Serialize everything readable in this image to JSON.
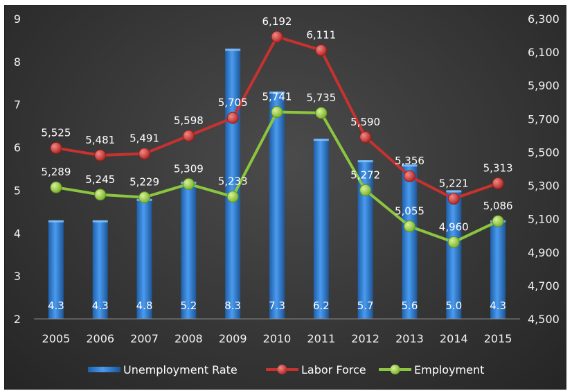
{
  "header_fragment": "",
  "chart_data": {
    "type": "bar+line",
    "categories": [
      "2005",
      "2006",
      "2007",
      "2008",
      "2009",
      "2010",
      "2011",
      "2012",
      "2013",
      "2014",
      "2015"
    ],
    "series": [
      {
        "name": "Unemployment Rate",
        "chart": "bar",
        "axis": "left",
        "color": "#2d7fd4",
        "values": [
          4.3,
          4.3,
          4.8,
          5.2,
          8.3,
          7.3,
          6.2,
          5.7,
          5.6,
          5.0,
          4.3
        ],
        "labels": [
          "4.3",
          "4.3",
          "4.8",
          "5.2",
          "8.3",
          "7.3",
          "6.2",
          "5.7",
          "5.6",
          "5.0",
          "4.3"
        ]
      },
      {
        "name": "Labor Force",
        "chart": "line",
        "axis": "right",
        "color": "#c7322f",
        "values": [
          5525,
          5481,
          5491,
          5598,
          5705,
          6192,
          6111,
          5590,
          5356,
          5221,
          5313
        ],
        "labels": [
          "5,525",
          "5,481",
          "5,491",
          "5,598",
          "5,705",
          "6,192",
          "6,111",
          "5,590",
          "5,356",
          "5,221",
          "5,313"
        ]
      },
      {
        "name": "Employment",
        "chart": "line",
        "axis": "right",
        "color": "#8cc63f",
        "values": [
          5289,
          5245,
          5229,
          5309,
          5233,
          5741,
          5735,
          5272,
          5055,
          4960,
          5086
        ],
        "labels": [
          "5,289",
          "5,245",
          "5,229",
          "5,309",
          "5,233",
          "5,741",
          "5,735",
          "5,272",
          "5,055",
          "4,960",
          "5,086"
        ]
      }
    ],
    "left_axis": {
      "range": [
        2,
        9
      ],
      "ticks": [
        "2",
        "3",
        "4",
        "5",
        "6",
        "7",
        "8",
        "9"
      ]
    },
    "right_axis": {
      "range": [
        4500,
        6300
      ],
      "ticks": [
        "4,500",
        "4,700",
        "4,900",
        "5,100",
        "5,300",
        "5,500",
        "5,700",
        "5,900",
        "6,100",
        "6,300"
      ]
    },
    "grid": false,
    "legend_position": "bottom"
  }
}
